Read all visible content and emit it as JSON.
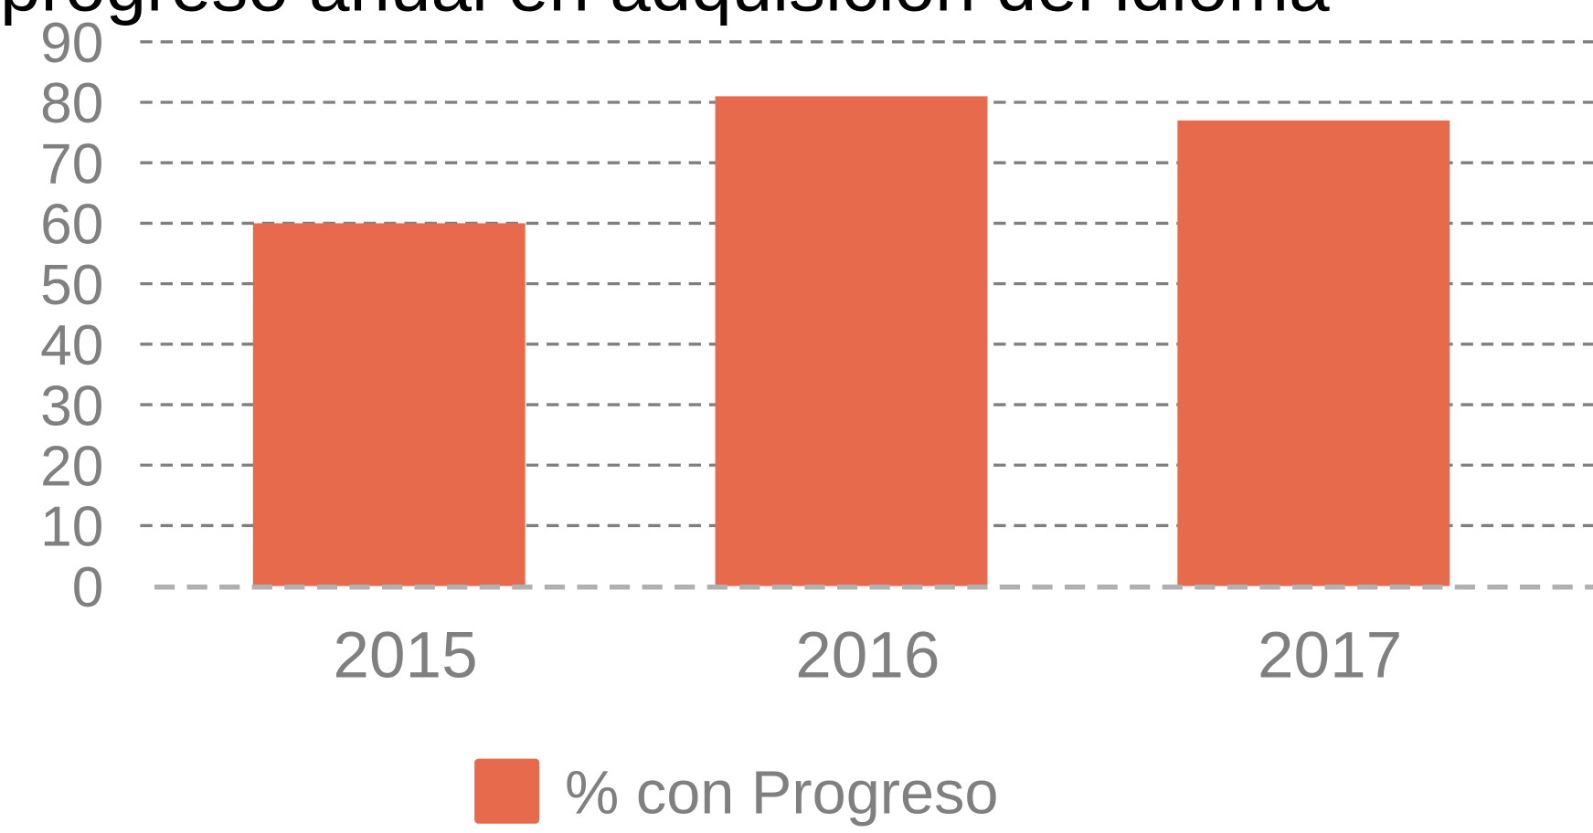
{
  "chart_data": {
    "type": "bar",
    "title": "progreso anual en adquisición del idioma",
    "categories": [
      "2015",
      "2016",
      "2017"
    ],
    "series": [
      {
        "name": "% con Progreso",
        "color": "#e76a4c",
        "values": [
          60,
          81,
          77
        ]
      }
    ],
    "ylim": [
      0,
      90
    ],
    "yticks": [
      0,
      10,
      20,
      30,
      40,
      50,
      60,
      70,
      80,
      90
    ],
    "grid": true,
    "legend": "bottom"
  }
}
